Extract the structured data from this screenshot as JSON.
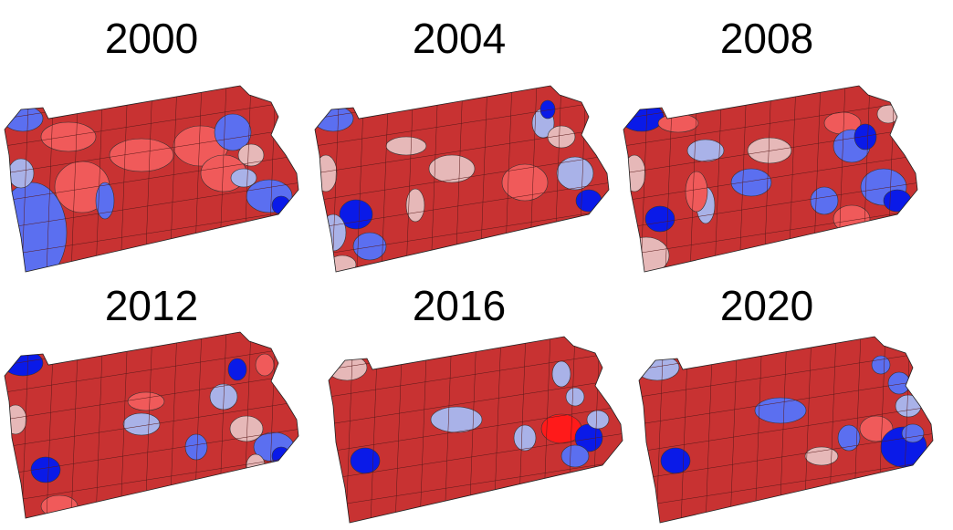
{
  "maps": [
    {
      "year": "2000"
    },
    {
      "year": "2004"
    },
    {
      "year": "2008"
    },
    {
      "year": "2012"
    },
    {
      "year": "2016"
    },
    {
      "year": "2020"
    }
  ]
}
